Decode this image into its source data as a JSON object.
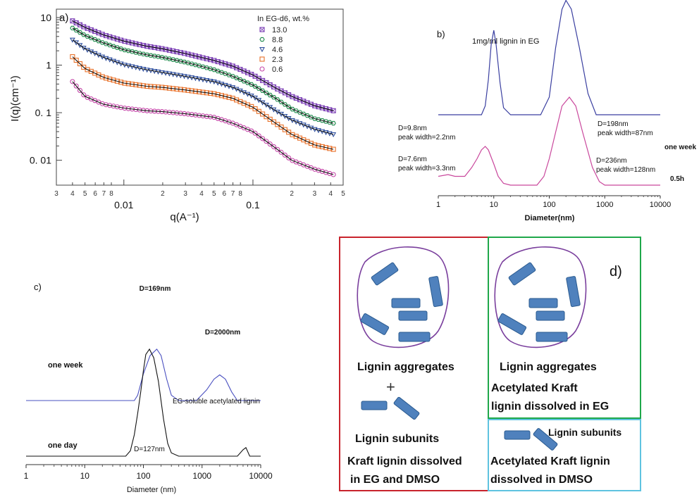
{
  "chart_data": [
    {
      "panel": "a)",
      "type": "line",
      "xlabel": "q(A⁻¹)",
      "ylabel": "I(q)(cm⁻¹)",
      "x_scale": "log",
      "y_scale": "log",
      "xlim": [
        0.003,
        0.5
      ],
      "ylim": [
        0.003,
        15
      ],
      "x_major_ticks": [
        {
          "value": 0.01,
          "label": "0.01"
        },
        {
          "value": 0.1,
          "label": "0.1"
        }
      ],
      "x_minor_ticks": [
        {
          "value": 0.003,
          "label": "3"
        },
        {
          "value": 0.004,
          "label": "4"
        },
        {
          "value": 0.005,
          "label": "5"
        },
        {
          "value": 0.006,
          "label": "6"
        },
        {
          "value": 0.007,
          "label": "7"
        },
        {
          "value": 0.008,
          "label": "8"
        },
        {
          "value": 0.02,
          "label": "2"
        },
        {
          "value": 0.03,
          "label": "3"
        },
        {
          "value": 0.04,
          "label": "4"
        },
        {
          "value": 0.05,
          "label": "5"
        },
        {
          "value": 0.06,
          "label": "6"
        },
        {
          "value": 0.07,
          "label": "7"
        },
        {
          "value": 0.08,
          "label": "8"
        },
        {
          "value": 0.2,
          "label": "2"
        },
        {
          "value": 0.3,
          "label": "3"
        },
        {
          "value": 0.4,
          "label": "4"
        },
        {
          "value": 0.5,
          "label": "5"
        }
      ],
      "y_ticks": [
        {
          "value": 10,
          "label": "10"
        },
        {
          "value": 1,
          "label": "1"
        },
        {
          "value": 0.1,
          "label": "0. 1"
        },
        {
          "value": 0.01,
          "label": "0. 01"
        }
      ],
      "legend_title": "In EG-d6, wt.%",
      "legend_position": "top-right",
      "x": [
        0.004,
        0.005,
        0.007,
        0.01,
        0.015,
        0.02,
        0.03,
        0.05,
        0.07,
        0.1,
        0.15,
        0.2,
        0.3,
        0.42
      ],
      "series": [
        {
          "name": "13.0",
          "marker": "square-x",
          "color": "#7b3fb5",
          "values": [
            8.5,
            6.2,
            4.3,
            3.2,
            2.5,
            2.2,
            1.75,
            1.25,
            0.95,
            0.62,
            0.33,
            0.22,
            0.14,
            0.11
          ]
        },
        {
          "name": "8.8",
          "marker": "hexagon",
          "color": "#1f8a4c",
          "values": [
            6.0,
            4.2,
            2.9,
            2.1,
            1.65,
            1.45,
            1.15,
            0.8,
            0.58,
            0.38,
            0.2,
            0.12,
            0.075,
            0.06
          ]
        },
        {
          "name": "4.6",
          "marker": "triangle-down",
          "color": "#2f4f9e",
          "values": [
            3.4,
            2.2,
            1.45,
            1.02,
            0.8,
            0.7,
            0.58,
            0.45,
            0.34,
            0.22,
            0.11,
            0.07,
            0.045,
            0.035
          ]
        },
        {
          "name": "2.3",
          "marker": "square",
          "color": "#e8712a",
          "values": [
            1.5,
            0.85,
            0.55,
            0.42,
            0.36,
            0.34,
            0.3,
            0.25,
            0.2,
            0.13,
            0.06,
            0.035,
            0.021,
            0.017
          ]
        },
        {
          "name": "0.6",
          "marker": "circle",
          "color": "#c446a8",
          "values": [
            0.45,
            0.22,
            0.15,
            0.125,
            0.11,
            0.105,
            0.095,
            0.08,
            0.06,
            0.04,
            0.018,
            0.01,
            0.0065,
            0.005
          ]
        }
      ]
    },
    {
      "panel": "b)",
      "type": "line",
      "title": "1mg/ml lignin in EG",
      "xlabel": "Diameter(nm)",
      "x_scale": "log",
      "xlim": [
        1,
        10000
      ],
      "x_ticks": [
        {
          "value": 1,
          "label": "1"
        },
        {
          "value": 10,
          "label": "10"
        },
        {
          "value": 100,
          "label": "100"
        },
        {
          "value": 1000,
          "label": "1000"
        },
        {
          "value": 10000,
          "label": "10000"
        }
      ],
      "ylim": [
        0,
        1
      ],
      "series": [
        {
          "name": "one week",
          "color": "#3a3fa0",
          "baseline_offset": 0.46,
          "x": [
            1,
            4,
            6,
            7,
            8,
            9,
            10,
            11,
            13,
            15,
            20,
            70,
            100,
            130,
            170,
            200,
            250,
            350,
            500,
            700,
            1000,
            10000
          ],
          "values": [
            0,
            0,
            0,
            0.05,
            0.2,
            0.4,
            0.48,
            0.4,
            0.18,
            0.04,
            0,
            0,
            0.1,
            0.38,
            0.6,
            0.65,
            0.6,
            0.38,
            0.12,
            0,
            0,
            0
          ]
        },
        {
          "name": "0.5h",
          "color": "#c9479c",
          "baseline_offset": 0.06,
          "x": [
            1,
            1.5,
            2,
            3,
            4,
            5,
            6,
            7,
            8,
            10,
            12,
            15,
            20,
            30,
            60,
            80,
            100,
            130,
            170,
            230,
            300,
            400,
            600,
            800,
            1000,
            10000
          ],
          "values": [
            0.05,
            0.06,
            0.05,
            0.05,
            0.1,
            0.15,
            0.2,
            0.22,
            0.2,
            0.12,
            0.05,
            0.01,
            0,
            0,
            0,
            0.05,
            0.15,
            0.3,
            0.45,
            0.5,
            0.45,
            0.3,
            0.1,
            0.02,
            0,
            0
          ]
        }
      ],
      "annotations": [
        {
          "lines": [
            "D=9.8nm",
            "peak width=2.2nm"
          ]
        },
        {
          "lines": [
            "D=198nm",
            "peak width=87nm"
          ]
        },
        {
          "lines": [
            "D=7.6nm",
            "peak width=3.3nm"
          ]
        },
        {
          "lines": [
            "D=236nm",
            "peak width=128nm"
          ]
        }
      ]
    },
    {
      "panel": "c)",
      "type": "line",
      "xlabel": "Diameter (nm)",
      "x_scale": "log",
      "xlim": [
        1,
        10000
      ],
      "x_ticks": [
        {
          "value": 1,
          "label": "1"
        },
        {
          "value": 10,
          "label": "10"
        },
        {
          "value": 100,
          "label": "100"
        },
        {
          "value": 1000,
          "label": "1000"
        },
        {
          "value": 10000,
          "label": "10000"
        }
      ],
      "ylim": [
        0,
        1
      ],
      "series": [
        {
          "name": "one week",
          "color": "#4a50c0",
          "baseline_offset": 0.52,
          "x": [
            1,
            70,
            80,
            100,
            130,
            169,
            200,
            250,
            300,
            400,
            800,
            1200,
            1600,
            2000,
            2500,
            3200,
            4000,
            10000
          ],
          "values": [
            0,
            0,
            0.05,
            0.25,
            0.42,
            0.48,
            0.42,
            0.2,
            0.05,
            0,
            0,
            0.1,
            0.2,
            0.24,
            0.2,
            0.08,
            0,
            0
          ]
        },
        {
          "name": "one day",
          "color": "#111111",
          "baseline_offset": 0.0,
          "x": [
            1,
            50,
            60,
            70,
            80,
            90,
            100,
            110,
            127,
            150,
            180,
            220,
            260,
            300,
            400,
            4000,
            5000,
            5600,
            6500,
            10000
          ],
          "values": [
            0,
            0,
            0.05,
            0.2,
            0.4,
            0.6,
            0.8,
            0.95,
            1.0,
            0.92,
            0.7,
            0.35,
            0.12,
            0.03,
            0,
            0,
            0.06,
            0.08,
            0,
            0
          ]
        }
      ],
      "annotations": [
        "D=169nm",
        "D=2000nm",
        "D=127nm",
        "EG-soluble acetylated lignin"
      ]
    }
  ],
  "panel_d": {
    "label": "d)",
    "left": {
      "aggregates_label": "Lignin aggregates",
      "plus": "+",
      "subunits_label": "Lignin subunits",
      "caption": [
        "Kraft lignin dissolved",
        "in EG and DMSO"
      ]
    },
    "right_top": {
      "aggregates_label": "Lignin aggregates",
      "caption": [
        "Acetylated Kraft",
        "lignin dissolved in EG"
      ]
    },
    "right_bottom": {
      "subunits_label": "Lignin subunits",
      "caption": [
        "Acetylated Kraft lignin",
        "dissolved in DMSO"
      ]
    },
    "colors": {
      "red_border": "#c8232c",
      "green_border": "#1fa84a",
      "cyan_border": "#5fc3e0",
      "circle_stroke": "#7a3f9d",
      "rod_fill": "#4f81bd",
      "rod_stroke": "#2a5a8f"
    }
  }
}
